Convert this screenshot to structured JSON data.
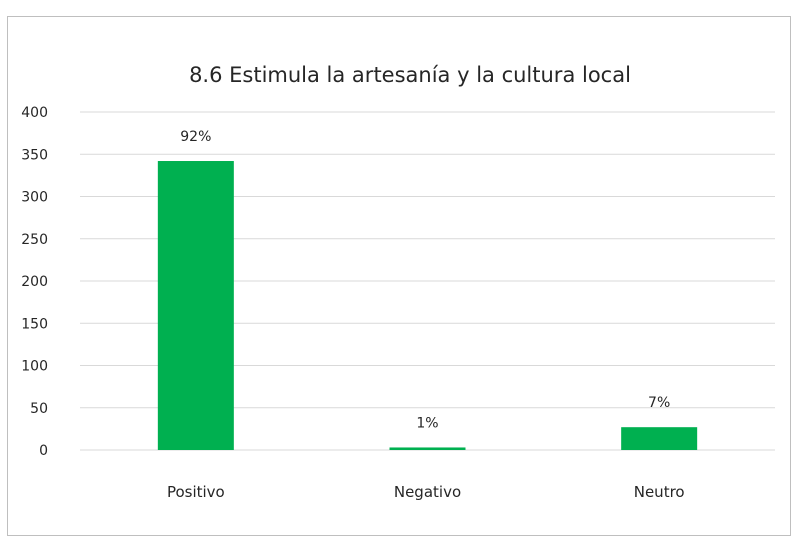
{
  "chart_data": {
    "type": "bar",
    "title": "8.6 Estimula la artesanía y la cultura local",
    "categories": [
      "Positivo",
      "Negativo",
      "Neutro"
    ],
    "values": [
      342,
      3,
      27
    ],
    "data_labels": [
      "92%",
      "1%",
      "7%"
    ],
    "ylim": [
      0,
      400
    ],
    "yticks": [
      0,
      50,
      100,
      150,
      200,
      250,
      300,
      350,
      400
    ],
    "xlabel": "",
    "ylabel": "",
    "grid": true,
    "legend": "none",
    "bar_color": "#00b050"
  }
}
